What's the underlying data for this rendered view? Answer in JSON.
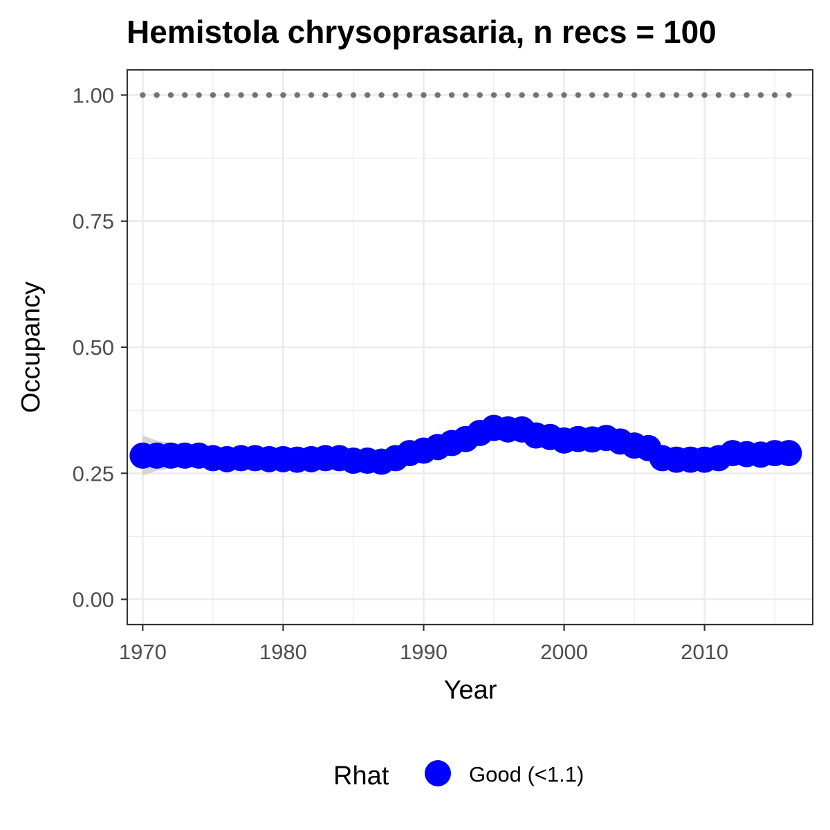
{
  "chart_data": {
    "type": "scatter",
    "title": "Hemistola chrysoprasaria, n recs = 100",
    "xlabel": "Year",
    "ylabel": "Occupancy",
    "xlim": [
      1968.9,
      2017.7
    ],
    "ylim": [
      -0.05,
      1.05
    ],
    "x_ticks": [
      1970,
      1980,
      1990,
      2000,
      2010
    ],
    "x_tick_labels": [
      "1970",
      "1980",
      "1990",
      "2000",
      "2010"
    ],
    "y_ticks": [
      0.0,
      0.25,
      0.5,
      0.75,
      1.0
    ],
    "y_tick_labels": [
      "0.00",
      "0.25",
      "0.50",
      "0.75",
      "1.00"
    ],
    "grid": true,
    "legend": {
      "title": "Rhat",
      "position": "bottom",
      "entries": [
        {
          "label": "Good (<1.1)",
          "color": "#0000ff"
        }
      ]
    },
    "colors": {
      "points": "#0000ff",
      "band": "#d3d3d3",
      "dotted_line": "#737373",
      "grid": "#ebebeb",
      "panel_border": "#333333"
    },
    "years": [
      1970,
      1971,
      1972,
      1973,
      1974,
      1975,
      1976,
      1977,
      1978,
      1979,
      1980,
      1981,
      1982,
      1983,
      1984,
      1985,
      1986,
      1987,
      1988,
      1989,
      1990,
      1991,
      1992,
      1993,
      1994,
      1995,
      1996,
      1997,
      1998,
      1999,
      2000,
      2001,
      2002,
      2003,
      2004,
      2005,
      2006,
      2007,
      2008,
      2009,
      2010,
      2011,
      2012,
      2013,
      2014,
      2015,
      2016
    ],
    "series": [
      {
        "name": "Good (<1.1)",
        "values": [
          0.285,
          0.285,
          0.285,
          0.285,
          0.285,
          0.28,
          0.278,
          0.28,
          0.28,
          0.278,
          0.278,
          0.277,
          0.278,
          0.28,
          0.28,
          0.275,
          0.275,
          0.273,
          0.28,
          0.29,
          0.295,
          0.302,
          0.31,
          0.318,
          0.33,
          0.34,
          0.337,
          0.337,
          0.325,
          0.322,
          0.315,
          0.318,
          0.317,
          0.32,
          0.313,
          0.305,
          0.3,
          0.28,
          0.277,
          0.277,
          0.277,
          0.28,
          0.29,
          0.288,
          0.287,
          0.29,
          0.29
        ],
        "lower": [
          0.245,
          0.255,
          0.26,
          0.26,
          0.265,
          0.262,
          0.262,
          0.263,
          0.263,
          0.262,
          0.262,
          0.262,
          0.263,
          0.264,
          0.264,
          0.26,
          0.258,
          0.256,
          0.264,
          0.274,
          0.28,
          0.287,
          0.295,
          0.303,
          0.315,
          0.324,
          0.322,
          0.322,
          0.31,
          0.307,
          0.3,
          0.303,
          0.302,
          0.305,
          0.298,
          0.29,
          0.284,
          0.264,
          0.261,
          0.261,
          0.261,
          0.265,
          0.274,
          0.273,
          0.272,
          0.274,
          0.272
        ],
        "upper": [
          0.325,
          0.315,
          0.31,
          0.31,
          0.305,
          0.298,
          0.295,
          0.297,
          0.297,
          0.295,
          0.295,
          0.293,
          0.294,
          0.296,
          0.296,
          0.29,
          0.292,
          0.29,
          0.296,
          0.306,
          0.31,
          0.317,
          0.325,
          0.333,
          0.345,
          0.356,
          0.352,
          0.352,
          0.34,
          0.337,
          0.33,
          0.333,
          0.332,
          0.335,
          0.328,
          0.32,
          0.316,
          0.296,
          0.293,
          0.293,
          0.293,
          0.296,
          0.306,
          0.303,
          0.302,
          0.306,
          0.308
        ]
      }
    ],
    "reference_line": {
      "value": 1.0,
      "style": "dotted"
    }
  }
}
